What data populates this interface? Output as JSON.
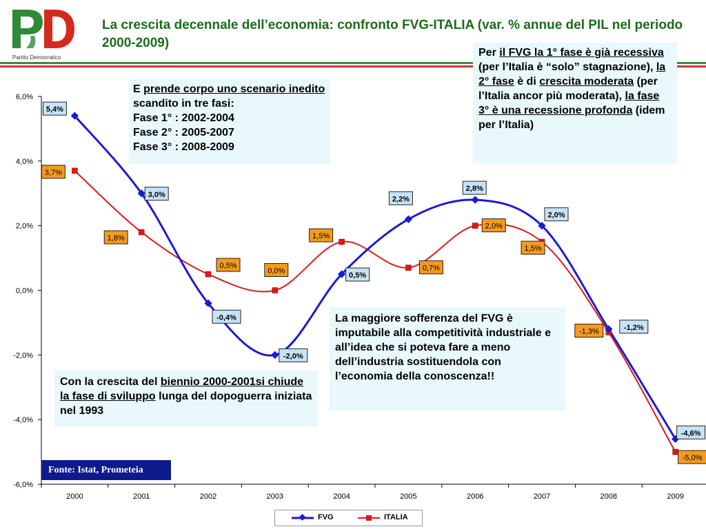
{
  "header": {
    "logo_text": "PD",
    "logo_tagline": "Partito Democratico",
    "title": "La crescita decennale dell’economia: confronto FVG-ITALIA (var. % annue del PIL nel periodo 2000-2009)"
  },
  "colors": {
    "fvg": "#1a1ad6",
    "italia": "#e01818",
    "title": "#1a6d1a",
    "note_bg": "#e8f8fb",
    "fvg_label_bg": "#c7e3f5",
    "italia_label_bg": "#f59a1d"
  },
  "chart_data": {
    "type": "line",
    "categories": [
      "2000",
      "2001",
      "2002",
      "2003",
      "2004",
      "2005",
      "2006",
      "2007",
      "2008",
      "2009"
    ],
    "series": [
      {
        "name": "FVG",
        "values": [
          5.4,
          3.0,
          -0.4,
          -2.0,
          0.5,
          2.2,
          2.8,
          2.0,
          -1.2,
          -4.6
        ],
        "labels": [
          "5,4%",
          "3,0%",
          "-0,4%",
          "-2,0%",
          "0,5%",
          "2,2%",
          "2,8%",
          "2,0%",
          "-1,2%",
          "-4,6%"
        ]
      },
      {
        "name": "ITALIA",
        "values": [
          3.7,
          1.8,
          0.5,
          0.0,
          1.5,
          0.7,
          2.0,
          1.5,
          -1.3,
          -5.0
        ],
        "labels": [
          "3,7%",
          "1,8%",
          "0,5%",
          "0,0%",
          "1,5%",
          "0,7%",
          "2,0%",
          "1,5%",
          "-1,3%",
          "-5,0%"
        ]
      }
    ],
    "ylim": [
      -6,
      6
    ],
    "yticks": [
      6,
      4,
      2,
      0,
      -2,
      -4,
      -6
    ],
    "ytick_labels": [
      "6,0%",
      "4,0%",
      "2,0%",
      "0,0%",
      "-2,0%",
      "-4,0%",
      "-6,0%"
    ],
    "grid": false,
    "legend": "bottom-center"
  },
  "notes": {
    "phases": {
      "p1_a": "E ",
      "p1_u": "prende corpo uno scenario inedito",
      "p1_b": " scandito in tre fasi:",
      "l2": "Fase 1° : 2002-2004",
      "l3": "Fase 2° : 2005-2007",
      "l4": "Fase 3° : 2008-2009"
    },
    "fvg_phases": {
      "a1": "Per ",
      "u1": "il FVG la 1° fase è già recessiva",
      "a2": " (per l’Italia è “solo” stagnazione), ",
      "u2": "la 2° fase",
      "a3": " è di ",
      "u3": "crescita moderata",
      "a4": " (per l’Italia ancor più moderata), ",
      "u4": "la fase 3° è una recessione profonda",
      "a5": " (idem per l’Italia)"
    },
    "sofferenza": "La maggiore sofferenza del FVG è imputabile alla competitività industriale e all’idea che si poteva fare a meno dell’industria sostituendola con l’economia della conoscenza!!",
    "biennio": {
      "a1": "Con la crescita del ",
      "u1": "biennio 2000-2001si chiude la fase di sviluppo",
      "a2": " lunga del dopoguerra iniziata nel 1993"
    }
  },
  "source": "Fonte: Istat, Prometeia"
}
